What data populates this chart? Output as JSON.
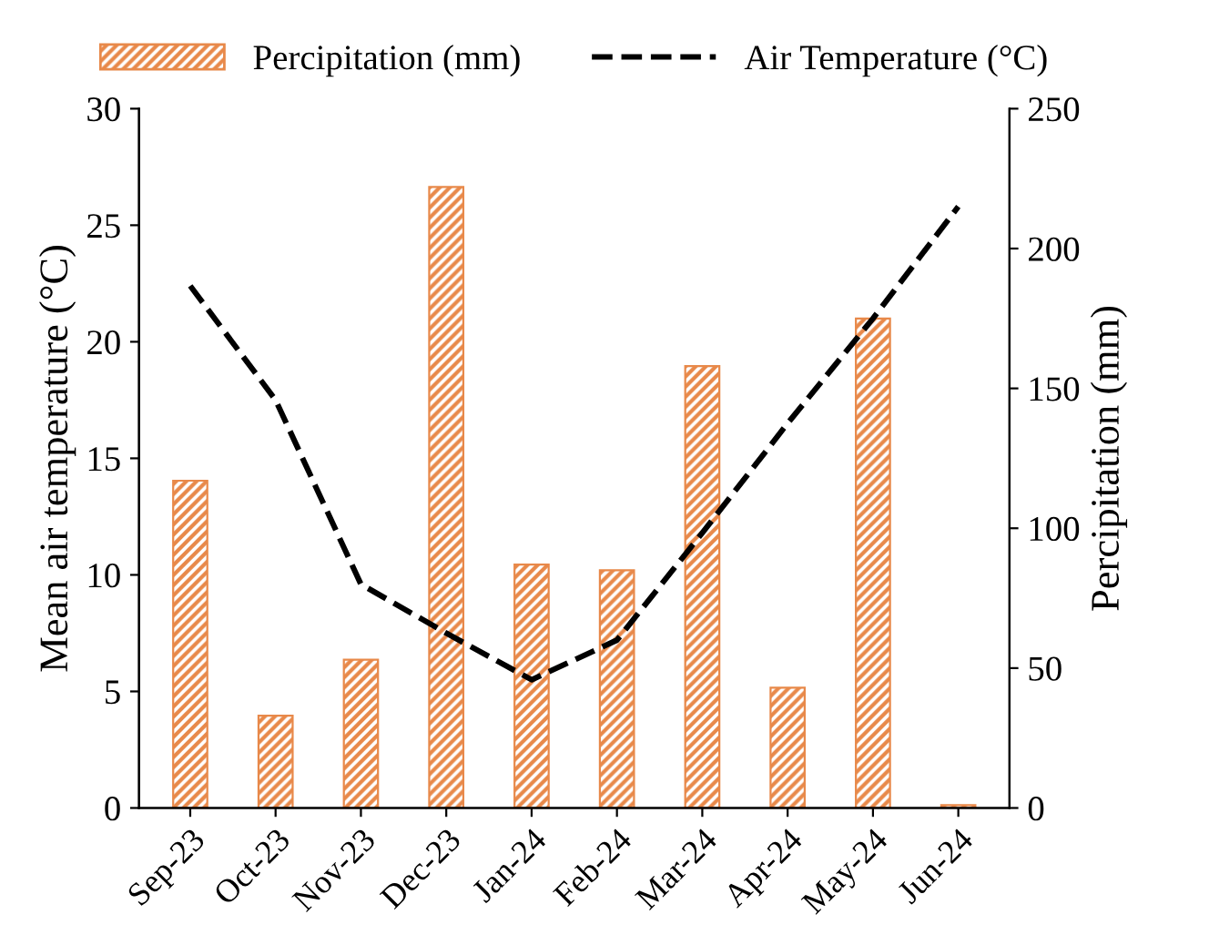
{
  "chart_data": {
    "type": "bar",
    "ylabel": "Mean air temperature (°C)",
    "y2label": "Percipitation (mm)",
    "categories": [
      "Sep-23",
      "Oct-23",
      "Nov-23",
      "Dec-23",
      "Jan-24",
      "Feb-24",
      "Mar-24",
      "Apr-24",
      "May-24",
      "Jun-24"
    ],
    "series": [
      {
        "name": "Percipitation (mm)",
        "axis": "y2",
        "color": "#e8894a",
        "values": [
          117,
          33,
          53,
          222,
          87,
          85,
          158,
          43,
          175,
          1
        ]
      },
      {
        "name": "Air Temperature (°C)",
        "type": "line",
        "axis": "y",
        "color": "#000000",
        "line_style": "dashed",
        "marker": "none",
        "values": [
          22.4,
          17.5,
          9.6,
          7.5,
          5.5,
          7.2,
          11.8,
          16.5,
          21,
          25.8
        ]
      }
    ],
    "ylim": [
      0,
      30
    ],
    "yticks": [
      0,
      5,
      10,
      15,
      20,
      25,
      30
    ],
    "y2lim": [
      0,
      250
    ],
    "y2ticks": [
      0,
      50,
      100,
      150,
      200,
      250
    ],
    "grid": false,
    "legend": "top"
  }
}
